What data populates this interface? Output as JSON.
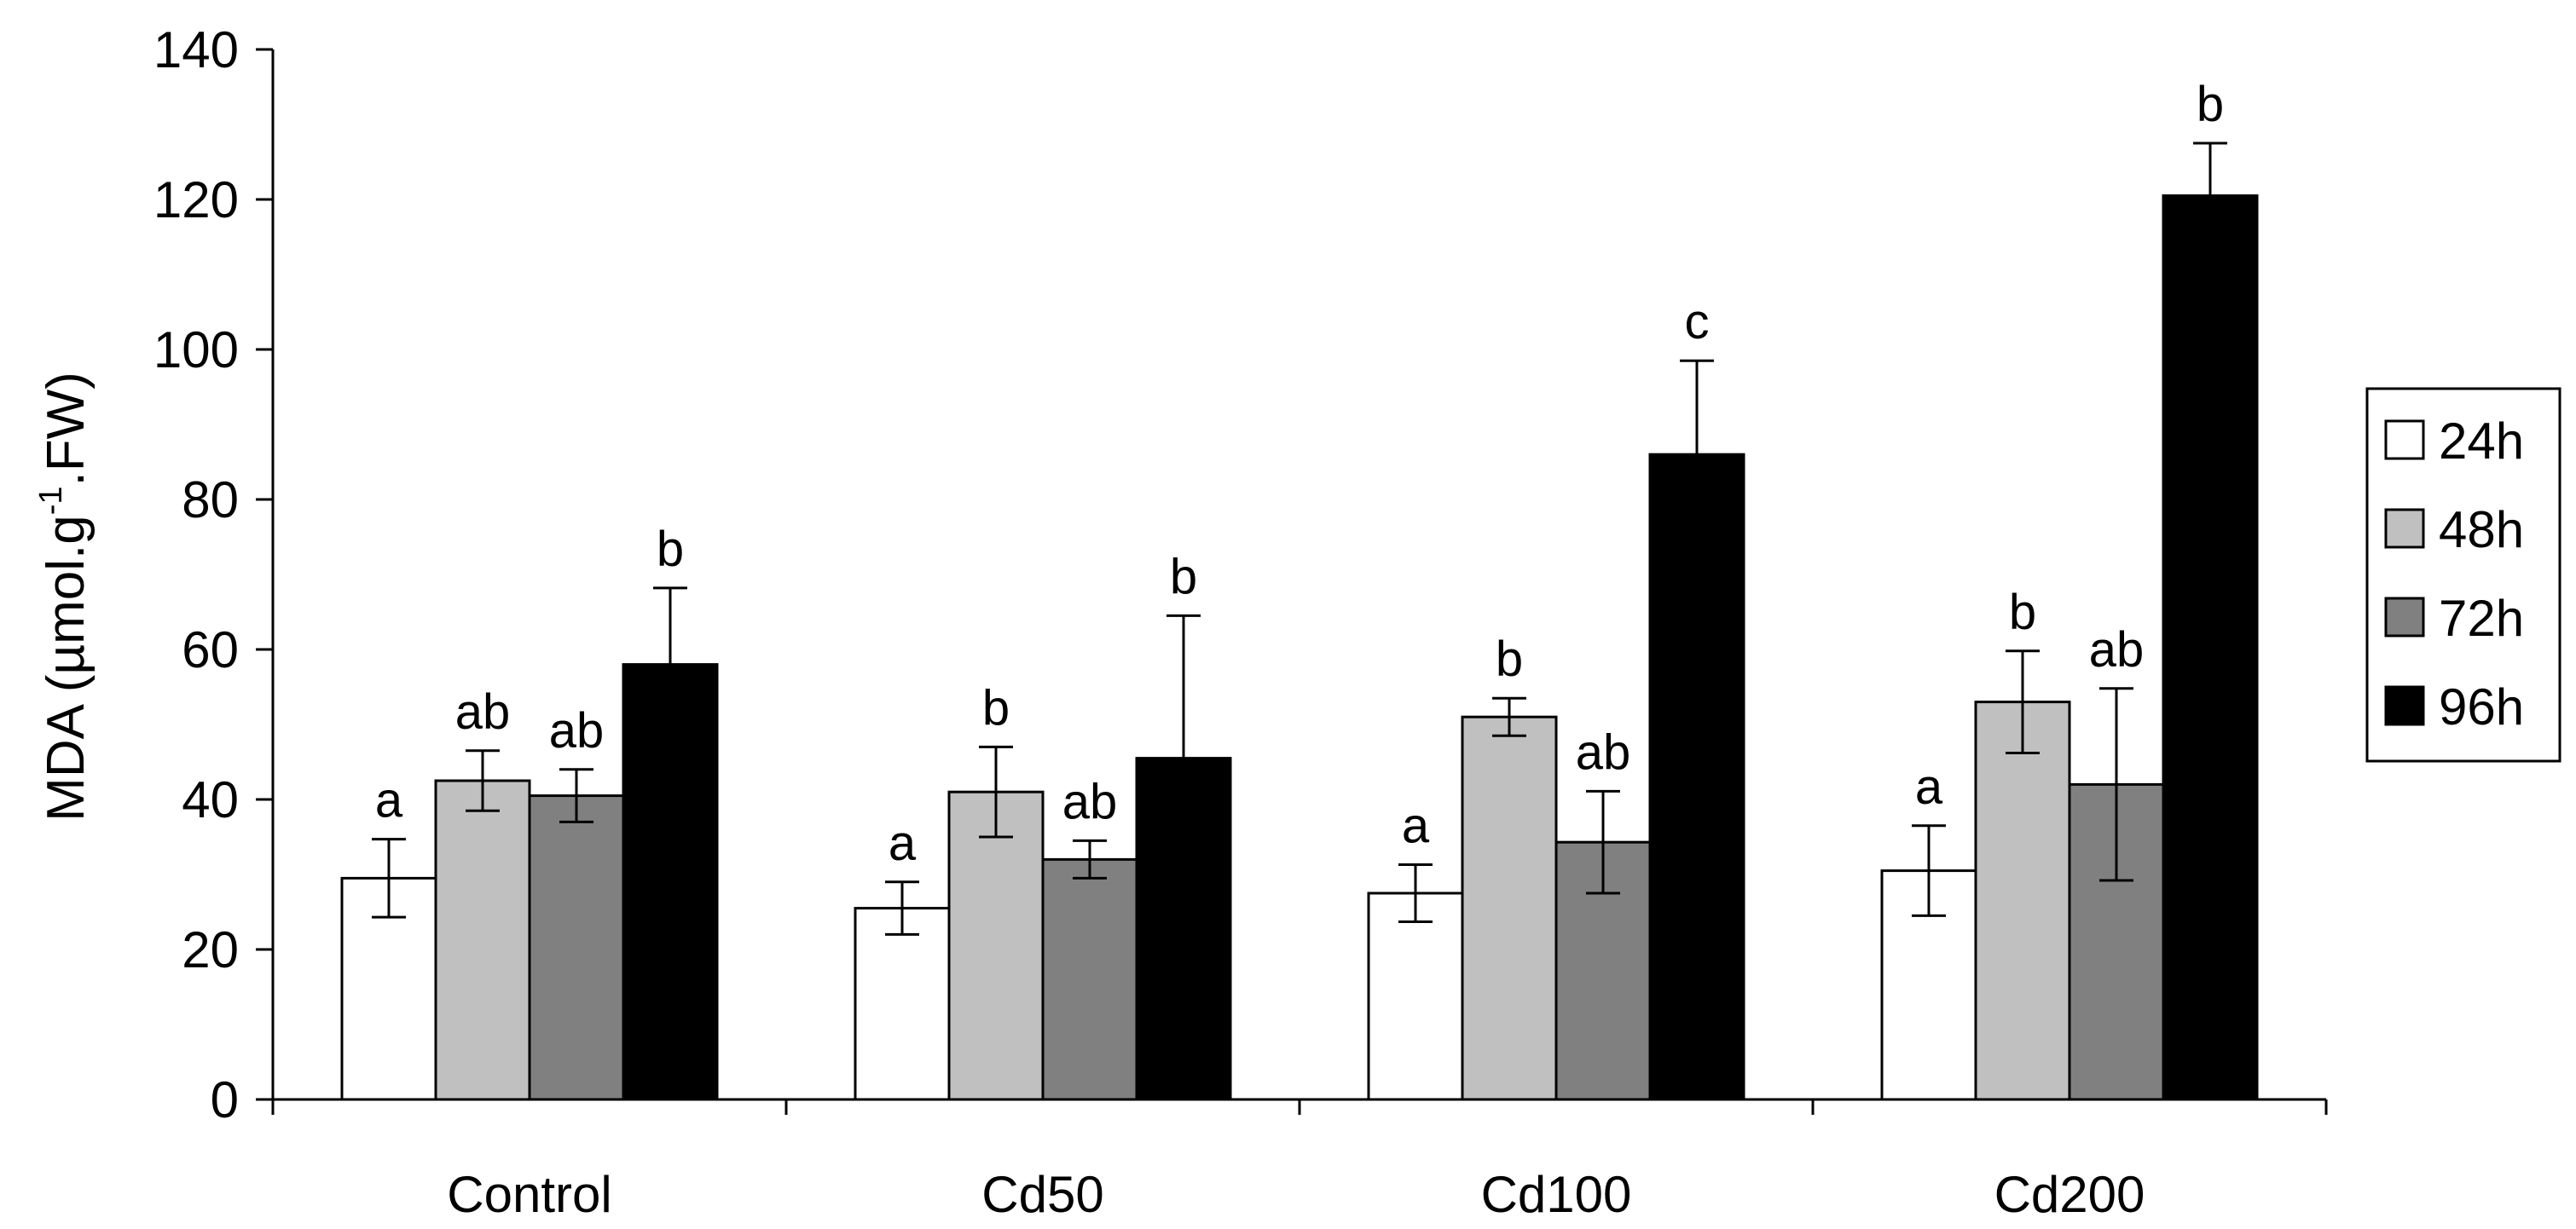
{
  "chart_data": {
    "type": "bar",
    "title": "",
    "xlabel": "",
    "ylabel_parts": {
      "main": "MDA (µmol.g",
      "sup": "-1",
      "tail": ".FW)"
    },
    "ylabel": "MDA (µmol.g-1.FW)",
    "ylim": [
      0,
      140
    ],
    "yticks": [
      0,
      20,
      40,
      60,
      80,
      100,
      120,
      140
    ],
    "categories": [
      "Control",
      "Cd50",
      "Cd100",
      "Cd200"
    ],
    "legend_position": "right",
    "series": [
      {
        "name": "24h",
        "color": "#ffffff",
        "values": [
          29.5,
          25.5,
          27.5,
          30.5
        ],
        "errors": [
          5.2,
          3.5,
          3.8,
          6.0
        ],
        "labels": [
          "a",
          "a",
          "a",
          "a"
        ]
      },
      {
        "name": "48h",
        "color": "#c0c0c0",
        "values": [
          42.5,
          41.0,
          51.0,
          53.0
        ],
        "errors": [
          4.0,
          6.0,
          2.5,
          6.8
        ],
        "labels": [
          "ab",
          "b",
          "b",
          "b"
        ]
      },
      {
        "name": "72h",
        "color": "#808080",
        "values": [
          40.5,
          32.0,
          34.3,
          42.0
        ],
        "errors": [
          3.5,
          2.5,
          6.8,
          12.8
        ],
        "labels": [
          "ab",
          "ab",
          "ab",
          "ab"
        ]
      },
      {
        "name": "96h",
        "color": "#000000",
        "values": [
          58.0,
          45.5,
          86.0,
          120.5
        ],
        "errors": [
          10.2,
          19.0,
          12.5,
          7.0
        ],
        "labels": [
          "b",
          "b",
          "c",
          "b"
        ]
      }
    ]
  }
}
